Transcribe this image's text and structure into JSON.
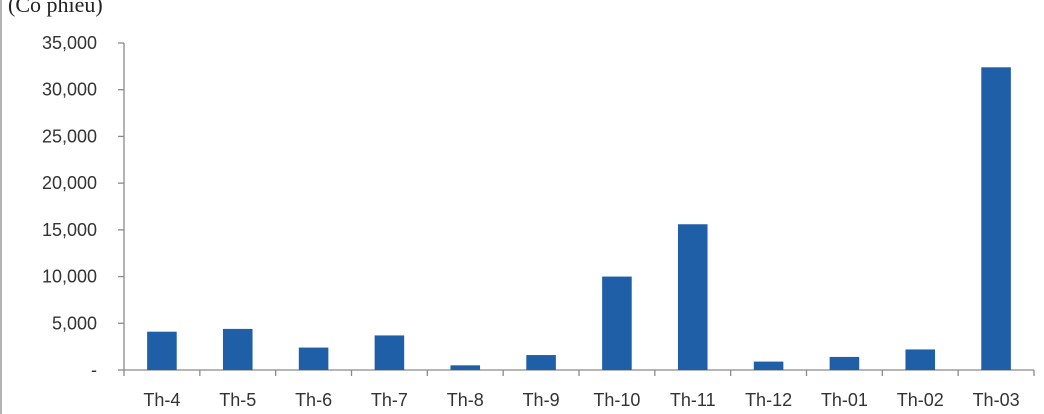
{
  "chart_data": {
    "type": "bar",
    "unit_label": "(Cổ phiếu)",
    "categories": [
      "Th-4",
      "Th-5",
      "Th-6",
      "Th-7",
      "Th-8",
      "Th-9",
      "Th-10",
      "Th-11",
      "Th-12",
      "Th-01",
      "Th-02",
      "Th-03"
    ],
    "series": [
      {
        "values": [
          4100,
          4400,
          2400,
          3700,
          500,
          1600,
          10000,
          15600,
          900,
          1400,
          2200,
          32400
        ],
        "color": "#1f5fa8"
      }
    ],
    "ylim": [
      0,
      35000
    ],
    "yticks": [
      0,
      5000,
      10000,
      15000,
      20000,
      25000,
      30000,
      35000
    ],
    "ytick_labels": [
      "-",
      "5,000",
      "10,000",
      "15,000",
      "20,000",
      "25,000",
      "30,000",
      "35,000"
    ],
    "grid": false,
    "legend": "none"
  }
}
